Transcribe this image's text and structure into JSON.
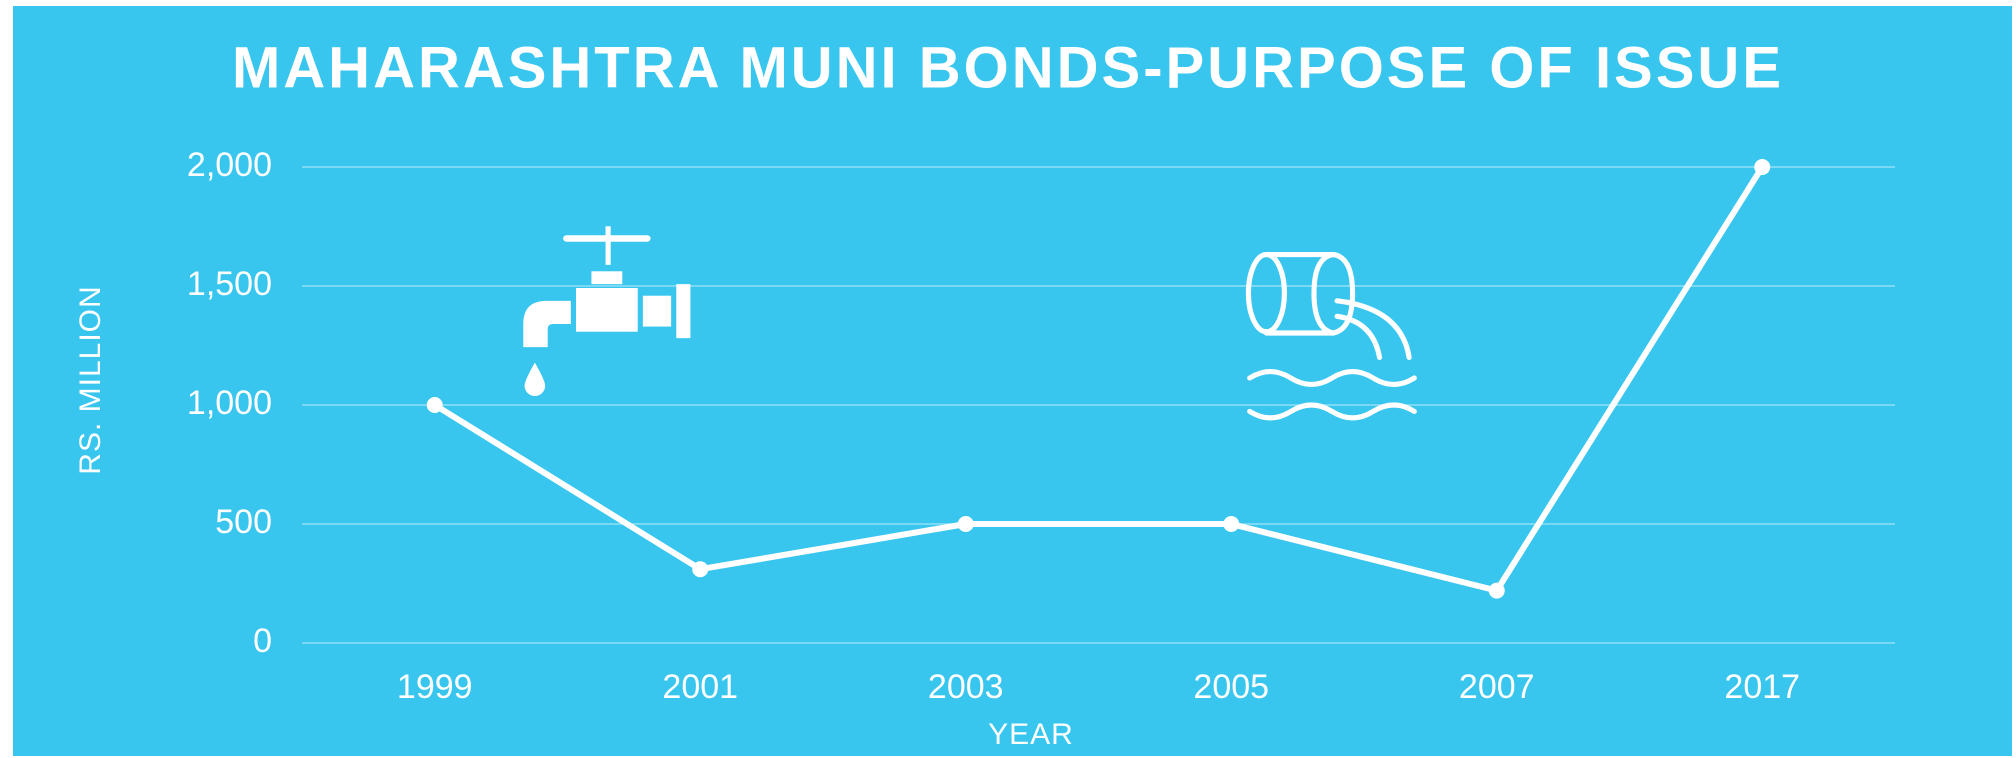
{
  "chart_data": {
    "type": "line",
    "title": "MAHARASHTRA MUNI BONDS-PURPOSE OF ISSUE",
    "x_label": "YEAR",
    "y_label": "RS. MILLION",
    "categories": [
      "1999",
      "2001",
      "2003",
      "2005",
      "2007",
      "2017"
    ],
    "series": [
      {
        "name": "Rs. Million",
        "color": "#ffffff",
        "values": [
          1000,
          310,
          500,
          500,
          220,
          2000
        ]
      }
    ],
    "ylim": [
      0,
      2000
    ],
    "yticks": [
      0,
      500,
      {
        "value": 1000,
        "label": "1,000"
      },
      {
        "value": 1500,
        "label": "1,500"
      },
      {
        "value": 2000,
        "label": "2,000"
      }
    ],
    "grid": true
  }
}
